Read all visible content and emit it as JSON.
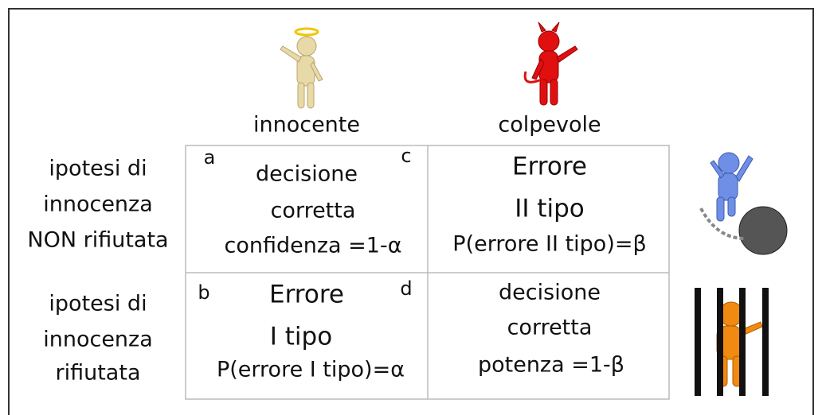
{
  "columns": [
    "innocente",
    "colpevole"
  ],
  "rows": [
    {
      "label": [
        "ipotesi di",
        "innocenza",
        "NON rifiutata"
      ],
      "cells": [
        {
          "corners": [
            "a",
            "c"
          ],
          "lines": [
            "decisione",
            "corretta",
            "confidenza =1-α"
          ]
        },
        {
          "lines": [
            "Errore",
            "II tipo",
            "P(errore II tipo)=β"
          ]
        }
      ]
    },
    {
      "label": [
        "ipotesi di",
        "innocenza",
        "rifiutata"
      ],
      "cells": [
        {
          "corners": [
            "b",
            "d"
          ],
          "lines": [
            "Errore",
            "I tipo",
            "P(errore I tipo)=α"
          ]
        },
        {
          "lines": [
            "decisione",
            "corretta",
            "potenza =1-β"
          ]
        }
      ]
    }
  ]
}
